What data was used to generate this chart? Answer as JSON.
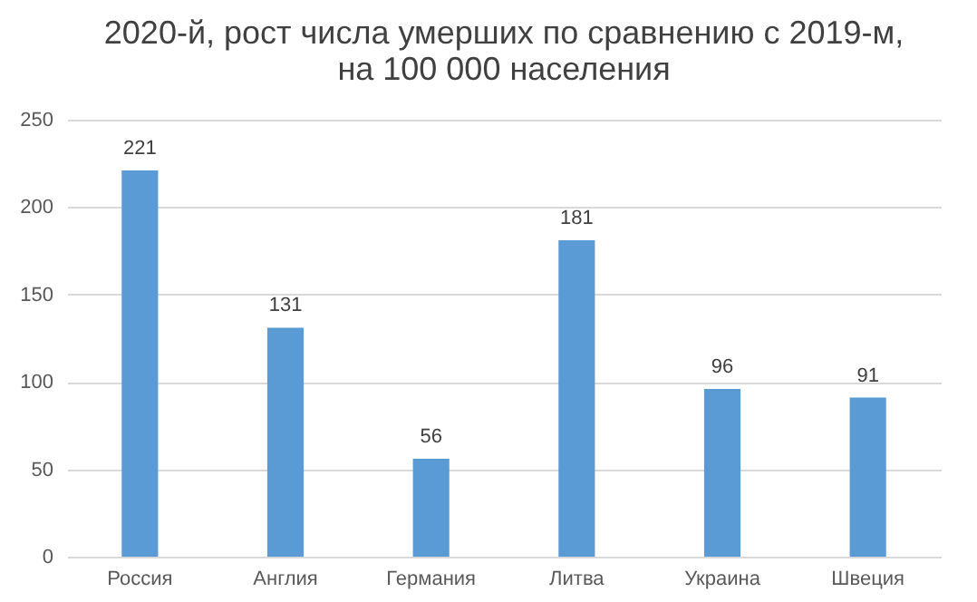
{
  "chart_data": {
    "type": "bar",
    "title": "2020-й, рост числа умерших по сравнению с 2019-м,\nна 100 000 населения",
    "categories": [
      "Россия",
      "Англия",
      "Германия",
      "Литва",
      "Украина",
      "Швеция"
    ],
    "values": [
      221,
      131,
      56,
      181,
      96,
      91
    ],
    "color": "#5b9bd5",
    "ylim": [
      0,
      250
    ],
    "yticks": [
      0,
      50,
      100,
      150,
      200,
      250
    ],
    "grid": "y",
    "data_labels": true
  }
}
